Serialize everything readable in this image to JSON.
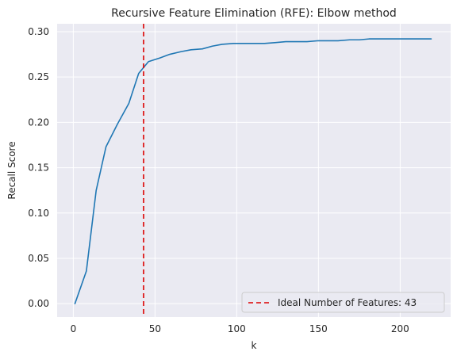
{
  "chart_data": {
    "type": "line",
    "title": "Recursive Feature Elimination (RFE): Elbow method",
    "xlabel": "k",
    "ylabel": "Recall Score",
    "xlim": [
      -9.9,
      230.9
    ],
    "ylim": [
      -0.0147,
      0.3087
    ],
    "xticks": [
      0,
      50,
      100,
      150,
      200
    ],
    "yticks": [
      0.0,
      0.05,
      0.1,
      0.15,
      0.2,
      0.25,
      0.3
    ],
    "ytick_labels": [
      "0.00",
      "0.05",
      "0.10",
      "0.15",
      "0.20",
      "0.25",
      "0.30"
    ],
    "grid": true,
    "legend_position": "lower-right",
    "colors": {
      "background": "#eaeaf2",
      "grid": "#ffffff",
      "line": "#1f77b4",
      "vline": "#dd0000"
    },
    "series": [
      {
        "x": [
          1,
          8,
          14,
          20,
          27,
          34,
          40,
          46,
          53,
          59,
          66,
          72,
          79,
          85,
          91,
          98,
          104,
          111,
          117,
          124,
          130,
          137,
          143,
          150,
          156,
          162,
          169,
          175,
          181,
          188,
          194,
          201,
          207,
          213,
          219
        ],
        "values": [
          0.0,
          0.036,
          0.125,
          0.173,
          0.198,
          0.221,
          0.254,
          0.267,
          0.271,
          0.275,
          0.278,
          0.28,
          0.281,
          0.284,
          0.286,
          0.287,
          0.287,
          0.287,
          0.287,
          0.288,
          0.289,
          0.289,
          0.289,
          0.29,
          0.29,
          0.29,
          0.291,
          0.291,
          0.292,
          0.292,
          0.292,
          0.292,
          0.292,
          0.292,
          0.292
        ]
      }
    ],
    "vline": {
      "x": 43,
      "style": "dashed"
    },
    "legend": [
      {
        "label": "Ideal Number of Features: 43"
      }
    ]
  }
}
